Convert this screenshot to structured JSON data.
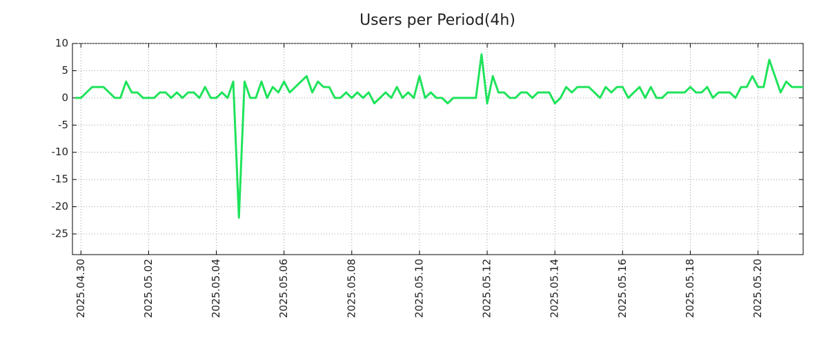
{
  "chart_data": {
    "type": "line",
    "title": "Users per Period(4h)",
    "x": [
      "2025-04-29 20:00",
      "2025-04-30 00:00",
      "2025-04-30 04:00",
      "2025-04-30 08:00",
      "2025-04-30 12:00",
      "2025-04-30 16:00",
      "2025-04-30 20:00",
      "2025-05-01 00:00",
      "2025-05-01 04:00",
      "2025-05-01 08:00",
      "2025-05-01 12:00",
      "2025-05-01 16:00",
      "2025-05-01 20:00",
      "2025-05-02 00:00",
      "2025-05-02 04:00",
      "2025-05-02 08:00",
      "2025-05-02 12:00",
      "2025-05-02 16:00",
      "2025-05-02 20:00",
      "2025-05-03 00:00",
      "2025-05-03 04:00",
      "2025-05-03 08:00",
      "2025-05-03 12:00",
      "2025-05-03 16:00",
      "2025-05-03 20:00",
      "2025-05-04 00:00",
      "2025-05-04 04:00",
      "2025-05-04 08:00",
      "2025-05-04 12:00",
      "2025-05-04 16:00",
      "2025-05-04 20:00",
      "2025-05-05 00:00",
      "2025-05-05 04:00",
      "2025-05-05 08:00",
      "2025-05-05 12:00",
      "2025-05-05 16:00",
      "2025-05-05 20:00",
      "2025-05-06 00:00",
      "2025-05-06 04:00",
      "2025-05-06 08:00",
      "2025-05-06 12:00",
      "2025-05-06 16:00",
      "2025-05-06 20:00",
      "2025-05-07 00:00",
      "2025-05-07 04:00",
      "2025-05-07 08:00",
      "2025-05-07 12:00",
      "2025-05-07 16:00",
      "2025-05-07 20:00",
      "2025-05-08 00:00",
      "2025-05-08 04:00",
      "2025-05-08 08:00",
      "2025-05-08 12:00",
      "2025-05-08 16:00",
      "2025-05-08 20:00",
      "2025-05-09 00:00",
      "2025-05-09 04:00",
      "2025-05-09 08:00",
      "2025-05-09 12:00",
      "2025-05-09 16:00",
      "2025-05-09 20:00",
      "2025-05-10 00:00",
      "2025-05-10 04:00",
      "2025-05-10 08:00",
      "2025-05-10 12:00",
      "2025-05-10 16:00",
      "2025-05-10 20:00",
      "2025-05-11 00:00",
      "2025-05-11 04:00",
      "2025-05-11 08:00",
      "2025-05-11 12:00",
      "2025-05-11 16:00",
      "2025-05-11 20:00",
      "2025-05-12 00:00",
      "2025-05-12 04:00",
      "2025-05-12 08:00",
      "2025-05-12 12:00",
      "2025-05-12 16:00",
      "2025-05-12 20:00",
      "2025-05-13 00:00",
      "2025-05-13 04:00",
      "2025-05-13 08:00",
      "2025-05-13 12:00",
      "2025-05-13 16:00",
      "2025-05-13 20:00",
      "2025-05-14 00:00",
      "2025-05-14 04:00",
      "2025-05-14 08:00",
      "2025-05-14 12:00",
      "2025-05-14 16:00",
      "2025-05-14 20:00",
      "2025-05-15 00:00",
      "2025-05-15 04:00",
      "2025-05-15 08:00",
      "2025-05-15 12:00",
      "2025-05-15 16:00",
      "2025-05-15 20:00",
      "2025-05-16 00:00",
      "2025-05-16 04:00",
      "2025-05-16 08:00",
      "2025-05-16 12:00",
      "2025-05-16 16:00",
      "2025-05-16 20:00",
      "2025-05-17 00:00",
      "2025-05-17 04:00",
      "2025-05-17 08:00",
      "2025-05-17 12:00",
      "2025-05-17 16:00",
      "2025-05-17 20:00",
      "2025-05-18 00:00",
      "2025-05-18 04:00",
      "2025-05-18 08:00",
      "2025-05-18 12:00",
      "2025-05-18 16:00",
      "2025-05-18 20:00",
      "2025-05-19 00:00",
      "2025-05-19 04:00",
      "2025-05-19 08:00",
      "2025-05-19 12:00",
      "2025-05-19 16:00",
      "2025-05-19 20:00",
      "2025-05-20 00:00",
      "2025-05-20 04:00",
      "2025-05-20 08:00",
      "2025-05-20 12:00",
      "2025-05-20 16:00",
      "2025-05-20 20:00",
      "2025-05-21 00:00",
      "2025-05-21 04:00",
      "2025-05-21 08:00"
    ],
    "series": [
      {
        "name": "Users",
        "color": "#1ee35a",
        "values": [
          0,
          0,
          1,
          2,
          2,
          2,
          1,
          0,
          0,
          3,
          1,
          1,
          0,
          0,
          0,
          1,
          1,
          0,
          1,
          0,
          1,
          1,
          0,
          2,
          0,
          0,
          1,
          0,
          3,
          -22,
          3,
          0,
          0,
          3,
          0,
          2,
          1,
          3,
          1,
          2,
          3,
          4,
          1,
          3,
          2,
          2,
          0,
          0,
          1,
          0,
          1,
          0,
          1,
          -1,
          0,
          1,
          0,
          2,
          0,
          1,
          0,
          4,
          0,
          1,
          0,
          0,
          -1,
          0,
          0,
          0,
          0,
          0,
          8,
          -1,
          4,
          1,
          1,
          0,
          0,
          1,
          1,
          0,
          1,
          1,
          1,
          -1,
          0,
          2,
          1,
          2,
          2,
          2,
          1,
          0,
          2,
          1,
          2,
          2,
          0,
          1,
          2,
          0,
          2,
          0,
          0,
          1,
          1,
          1,
          1,
          2,
          1,
          1,
          2,
          0,
          1,
          1,
          1,
          0,
          2,
          2,
          4,
          2,
          2,
          7,
          4,
          1,
          3,
          2,
          2,
          2
        ]
      }
    ],
    "xlim": [
      "2025-04-29 18:00",
      "2025-05-21 08:00"
    ],
    "xticks": [
      {
        "value": "2025-04-30 00:00",
        "label": "2025.04.30"
      },
      {
        "value": "2025-05-02 00:00",
        "label": "2025.05.02"
      },
      {
        "value": "2025-05-04 00:00",
        "label": "2025.05.04"
      },
      {
        "value": "2025-05-06 00:00",
        "label": "2025.05.06"
      },
      {
        "value": "2025-05-08 00:00",
        "label": "2025.05.08"
      },
      {
        "value": "2025-05-10 00:00",
        "label": "2025.05.10"
      },
      {
        "value": "2025-05-12 00:00",
        "label": "2025.05.12"
      },
      {
        "value": "2025-05-14 00:00",
        "label": "2025.05.14"
      },
      {
        "value": "2025-05-16 00:00",
        "label": "2025.05.16"
      },
      {
        "value": "2025-05-18 00:00",
        "label": "2025.05.18"
      },
      {
        "value": "2025-05-20 00:00",
        "label": "2025.05.20"
      }
    ],
    "ylim": [
      -28.8,
      10
    ],
    "yticks": [
      10,
      5,
      0,
      -5,
      -10,
      -15,
      -20,
      -25
    ],
    "grid": true
  }
}
